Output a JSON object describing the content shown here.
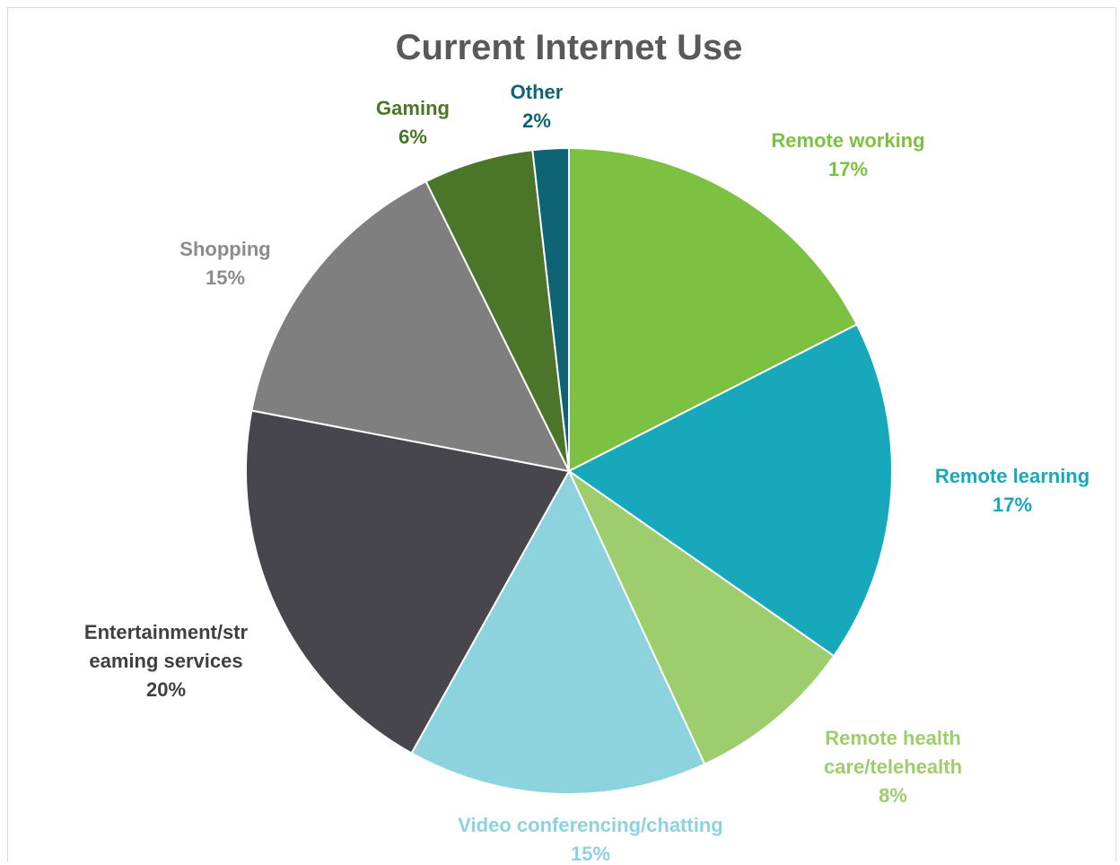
{
  "chart_data": {
    "type": "pie",
    "title": "Current Internet Use",
    "slices": [
      {
        "label": [
          "Remote working"
        ],
        "pct_text": "17%",
        "value": 17.5,
        "color": "#7dc142"
      },
      {
        "label": [
          "Remote learning"
        ],
        "pct_text": "17%",
        "value": 17.2,
        "color": "#17a9bb"
      },
      {
        "label": [
          "Remote health",
          "care/telehealth"
        ],
        "pct_text": "8%",
        "value": 8.4,
        "color": "#9ecd6e"
      },
      {
        "label": [
          "Video conferencing/chatting"
        ],
        "pct_text": "15%",
        "value": 15.0,
        "color": "#8dd3dd"
      },
      {
        "label": [
          "Entertainment/str",
          "eaming services"
        ],
        "pct_text": "20%",
        "value": 19.9,
        "color": "#46464c"
      },
      {
        "label": [
          "Shopping"
        ],
        "pct_text": "15%",
        "value": 14.7,
        "color": "#7f7f7f"
      },
      {
        "label": [
          "Gaming"
        ],
        "pct_text": "6%",
        "value": 5.5,
        "color": "#4b7529"
      },
      {
        "label": [
          "Other"
        ],
        "pct_text": "2%",
        "value": 1.8,
        "color": "#0e6474"
      }
    ],
    "label_colors": [
      "#7dc142",
      "#17a9bb",
      "#9ecd6e",
      "#8dd3dd",
      "#404040",
      "#8c8c8c",
      "#4b7529",
      "#0e6474"
    ]
  }
}
